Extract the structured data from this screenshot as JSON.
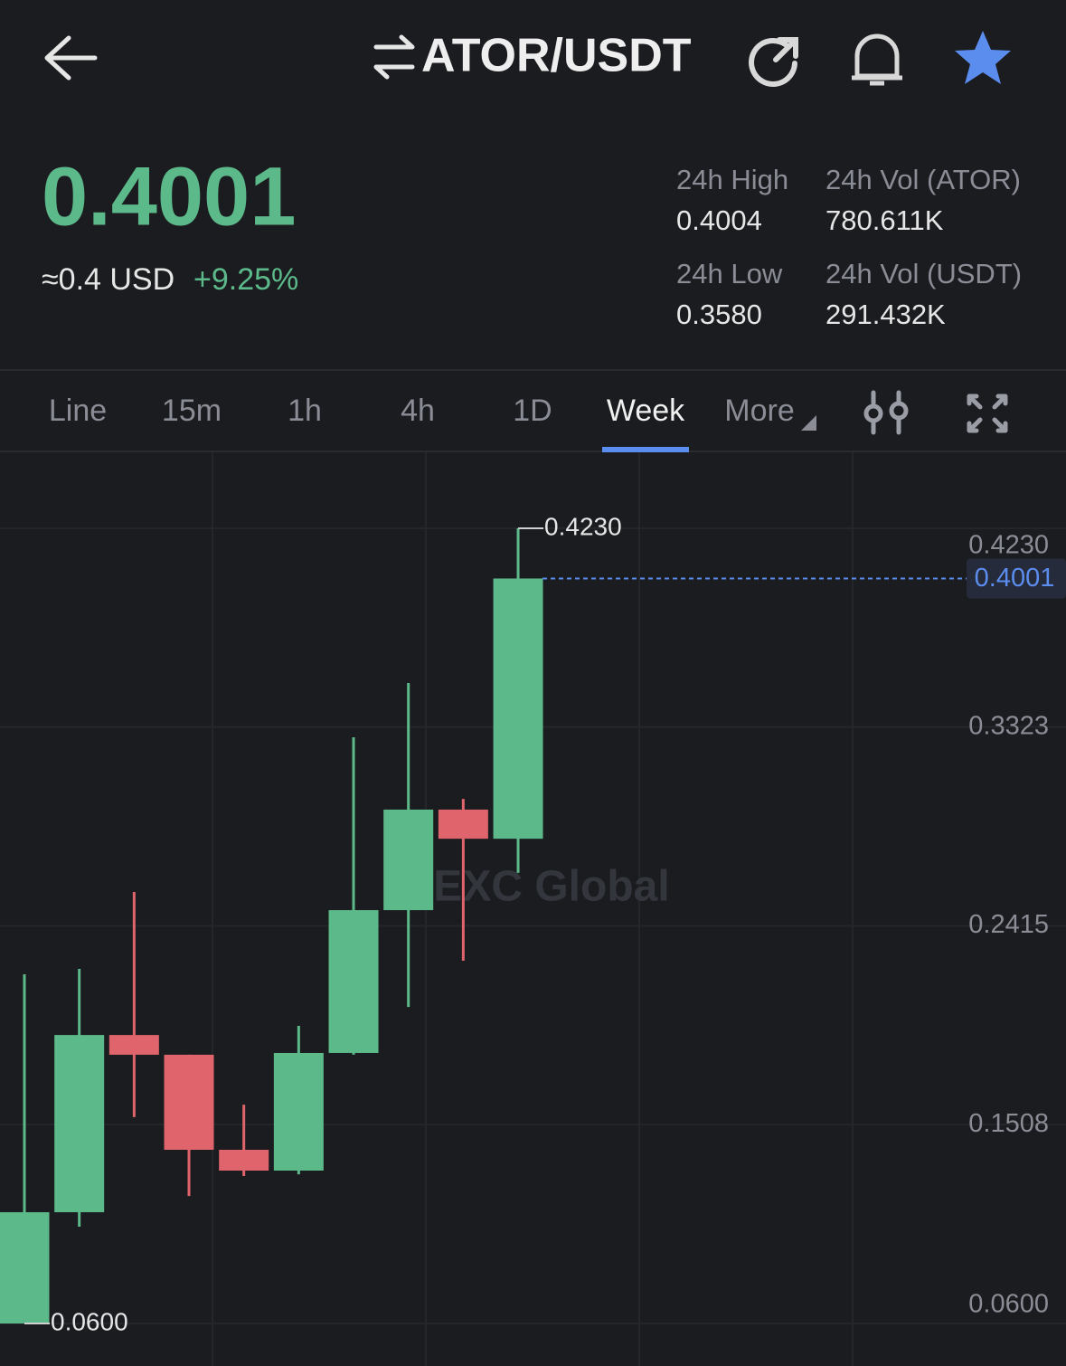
{
  "header": {
    "pair": "ATOR/USDT"
  },
  "ticker": {
    "price": "0.4001",
    "usd": "≈0.4 USD",
    "change": "+9.25%",
    "stats": [
      {
        "label": "24h High",
        "value": "0.4004"
      },
      {
        "label": "24h Vol (ATOR)",
        "value": "780.611K"
      },
      {
        "label": "24h Low",
        "value": "0.3580"
      },
      {
        "label": "24h Vol  (USDT)",
        "value": "291.432K"
      }
    ]
  },
  "tabs": [
    "Line",
    "15m",
    "1h",
    "4h",
    "1D",
    "Week",
    "More"
  ],
  "active_tab": 5,
  "chart_data": {
    "type": "candlestick",
    "watermark": "MEXC Global",
    "candles": {
      "open": [
        0.06,
        0.1108,
        0.1917,
        0.1827,
        0.1393,
        0.1298,
        0.1835,
        0.2487,
        0.2946,
        0.2813
      ],
      "high": [
        0.2194,
        0.2219,
        0.257,
        0.1827,
        0.1599,
        0.1959,
        0.3276,
        0.3524,
        0.2995,
        0.423
      ],
      "low": [
        0.06,
        0.1042,
        0.1542,
        0.1182,
        0.1273,
        0.1281,
        0.1827,
        0.2045,
        0.2256,
        0.2657
      ],
      "close": [
        0.1108,
        0.1917,
        0.1827,
        0.1393,
        0.1298,
        0.1835,
        0.2487,
        0.2946,
        0.2813,
        0.4001
      ]
    },
    "ylim": [
      0.0406,
      0.4577
    ],
    "yticks": [
      {
        "value": 0.06,
        "label": "0.0600"
      },
      0.1508,
      0.2415,
      0.3323,
      {
        "value": 0.423,
        "label": "0.4230"
      }
    ],
    "last_price": 0.4001,
    "high_label": {
      "value": 0.423,
      "label": "0.4230"
    },
    "low_label": {
      "value": 0.06,
      "label": "0.0600"
    },
    "up_color": "#5cb98a",
    "down_color": "#e0646b",
    "grid": true
  }
}
